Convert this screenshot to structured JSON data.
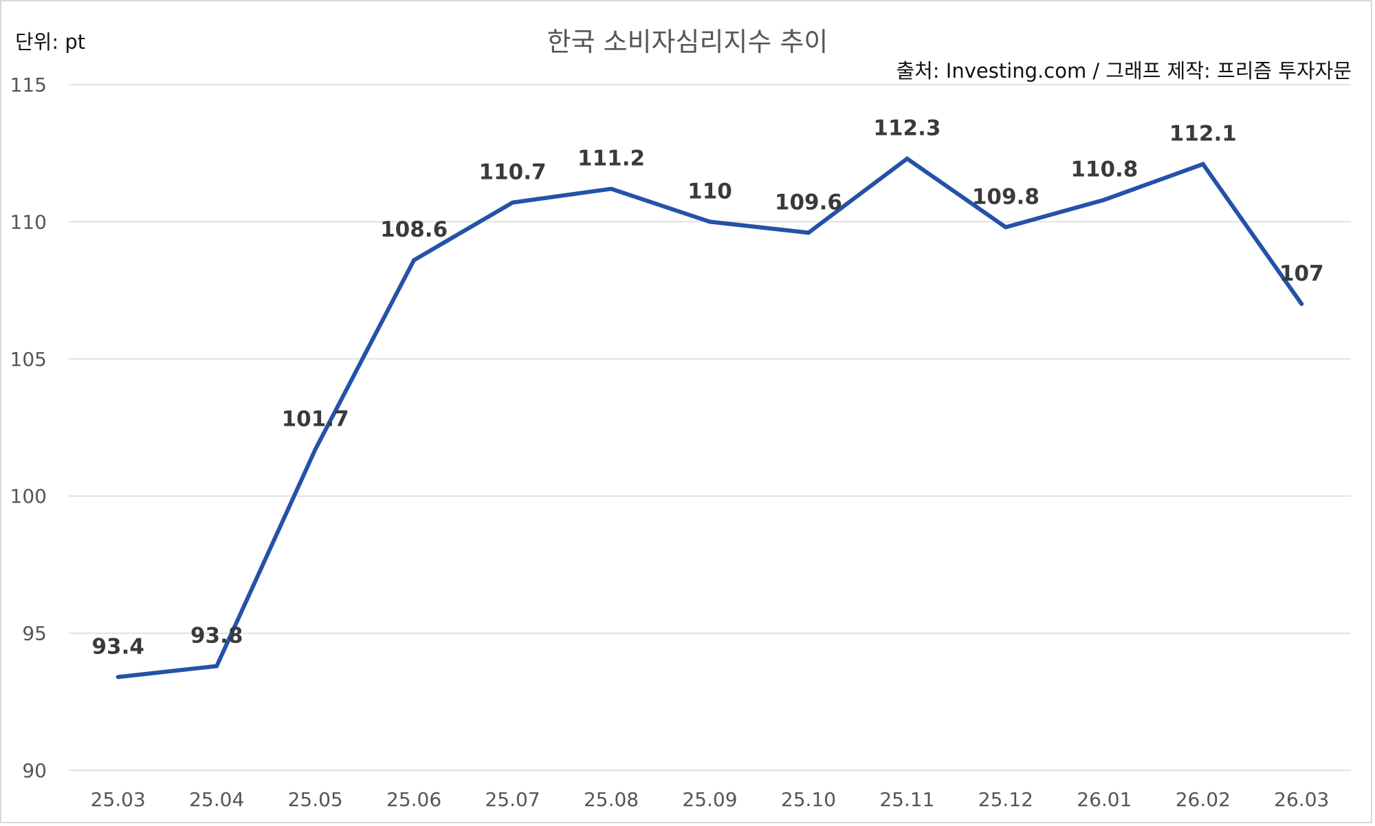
{
  "header": {
    "unit": "단위: pt",
    "title": "한국 소비자심리지수 추이",
    "source": "출처: Investing.com / 그래프 제작: 프리즘 투자자문"
  },
  "chart_data": {
    "type": "line",
    "title": "한국 소비자심리지수 추이",
    "xlabel": "",
    "ylabel": "단위: pt",
    "categories": [
      "25.03",
      "25.04",
      "25.05",
      "25.06",
      "25.07",
      "25.08",
      "25.09",
      "25.10",
      "25.11",
      "25.12",
      "26.01",
      "26.02",
      "26.03"
    ],
    "series": [
      {
        "values": [
          93.4,
          93.8,
          101.7,
          108.6,
          110.7,
          111.2,
          110,
          109.6,
          112.3,
          109.8,
          110.8,
          112.1,
          107
        ],
        "labels": [
          "93.4",
          "93.8",
          "101.7",
          "108.6",
          "110.7",
          "111.2",
          "110",
          "109.6",
          "112.3",
          "109.8",
          "110.8",
          "112.1",
          "107"
        ]
      }
    ],
    "ylim": [
      90,
      115
    ],
    "yticks": [
      "90",
      "95",
      "100",
      "105",
      "110",
      "115"
    ],
    "grid": true,
    "legend": "none",
    "line_color": "#2452a8"
  }
}
